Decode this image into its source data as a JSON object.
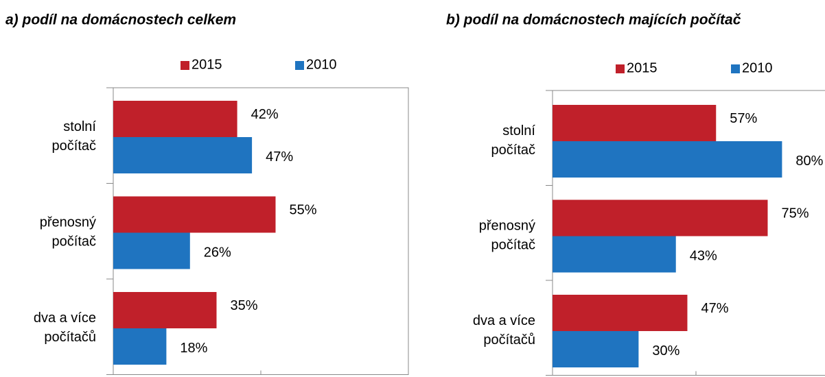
{
  "chart_data": [
    {
      "type": "bar",
      "orientation": "horizontal",
      "title": "a) podíl na domácnostech celkem",
      "categories": [
        [
          "stolní",
          "počítač"
        ],
        [
          "přenosný",
          "počítač"
        ],
        [
          "dva a více",
          "počítačů"
        ]
      ],
      "series": [
        {
          "name": "2015",
          "color": "#c0202a",
          "values": [
            42,
            55,
            35
          ],
          "value_labels": [
            "42%",
            "55%",
            "35%"
          ]
        },
        {
          "name": "2010",
          "color": "#1f74c0",
          "values": [
            47,
            26,
            18
          ],
          "value_labels": [
            "47%",
            "26%",
            "18%"
          ]
        }
      ],
      "xlim": [
        0,
        100
      ],
      "xticks": [
        0,
        50,
        100
      ],
      "legend": "top"
    },
    {
      "type": "bar",
      "orientation": "horizontal",
      "title": "b) podíl na domácnostech majících počítač",
      "categories": [
        [
          "stolní",
          "počítač"
        ],
        [
          "přenosný",
          "počítač"
        ],
        [
          "dva a více",
          "počítačů"
        ]
      ],
      "series": [
        {
          "name": "2015",
          "color": "#c0202a",
          "values": [
            57,
            75,
            47
          ],
          "value_labels": [
            "57%",
            "75%",
            "47%"
          ]
        },
        {
          "name": "2010",
          "color": "#1f74c0",
          "values": [
            80,
            43,
            30
          ],
          "value_labels": [
            "80%",
            "43%",
            "30%"
          ]
        }
      ],
      "xlim": [
        0,
        100
      ],
      "xticks": [
        0,
        50,
        100
      ],
      "legend": "top"
    }
  ]
}
